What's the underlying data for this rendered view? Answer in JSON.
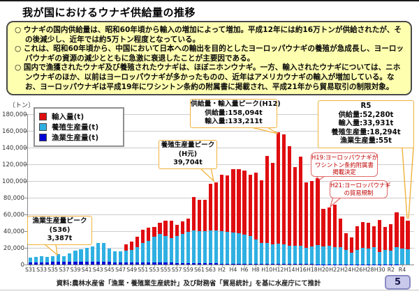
{
  "title": "我が国におけるウナギ供給量の推移",
  "summary_box": {
    "bullets": [
      "○ ウナギの国内供給量は、昭和60年頃から輸入の増加によって増加。平成12年には約16万トンが供給されたが、その後減少し、近年では約5万トン程度となっている。",
      "○ これは、昭和60年頃から、中国において日本への輸出を目的としたヨーロッパウナギの養殖が急成長し、ヨーロッパウナギの資源の減少とともに急激に衰退したことが主要因である。",
      "○ 国内で漁獲されたウナギ及び養殖されたウナギは、ほぼニホンウナギ。一方、輸入されたウナギについては、ニホンウナギのほか、以前はヨーロッパウナギが多かったものの、近年はアメリカウナギの輸入が増加している。なお、ヨーロッパウナギは平成19年にワシントン条約の附属書に掲載され、平成21年から貿易取引の制限対象。"
    ]
  },
  "chart_data": {
    "type": "bar",
    "stacked": true,
    "unit_label": "〔トン〕",
    "ylim": [
      0,
      180000
    ],
    "y_tick_step": 20000,
    "grid": true,
    "legend_position": "top-left",
    "x_tick_labels": [
      "S31",
      "S33",
      "S35",
      "S37",
      "S39",
      "S41",
      "S43",
      "S45",
      "S47",
      "S49",
      "S51",
      "S53",
      "S55",
      "S57",
      "S59",
      "S61",
      "S63",
      "H2",
      "H4",
      "H6",
      "H8",
      "H10",
      "H12",
      "H14",
      "H16",
      "H18",
      "H20",
      "H22",
      "H24",
      "H26",
      "H28",
      "H30",
      "R2",
      "R4"
    ],
    "x_tick_every": 2,
    "years": [
      "S31",
      "S32",
      "S33",
      "S34",
      "S35",
      "S36",
      "S37",
      "S38",
      "S39",
      "S40",
      "S41",
      "S42",
      "S43",
      "S44",
      "S45",
      "S46",
      "S47",
      "S48",
      "S49",
      "S50",
      "S51",
      "S52",
      "S53",
      "S54",
      "S55",
      "S56",
      "S57",
      "S58",
      "S59",
      "S60",
      "S61",
      "S62",
      "S63",
      "H1",
      "H2",
      "H3",
      "H4",
      "H5",
      "H6",
      "H7",
      "H8",
      "H9",
      "H10",
      "H11",
      "H12",
      "H13",
      "H14",
      "H15",
      "H16",
      "H17",
      "H18",
      "H19",
      "H20",
      "H21",
      "H22",
      "H23",
      "H24",
      "H25",
      "H26",
      "H27",
      "H28",
      "H29",
      "H30",
      "R1",
      "R2",
      "R3",
      "R4",
      "R5"
    ],
    "series": [
      {
        "name": "輸入量(t)",
        "color": "#e00d10",
        "values": [
          0,
          0,
          0,
          0,
          0,
          0,
          0,
          0,
          0,
          0,
          0,
          0,
          0,
          0,
          0,
          0,
          0,
          7800,
          9700,
          12500,
          15500,
          15600,
          11600,
          14000,
          18000,
          20700,
          13300,
          15000,
          15800,
          40100,
          37100,
          36800,
          55400,
          57696,
          67800,
          68000,
          75600,
          76400,
          76500,
          74000,
          79950,
          75000,
          104500,
          98020,
          133211,
          132200,
          119450,
          94700,
          107250,
          77800,
          78650,
          79600,
          45050,
          45300,
          50650,
          33870,
          19900,
          18020,
          27840,
          30360,
          30980,
          24700,
          37810,
          27620,
          31030,
          41435,
          38040,
          33931
        ]
      },
      {
        "name": "養殖生産量(t)",
        "color": "#2fb0e2",
        "values": [
          5700,
          6700,
          7000,
          6100,
          6800,
          8800,
          7100,
          10100,
          13400,
          15200,
          16700,
          18700,
          22900,
          22500,
          16100,
          13100,
          12700,
          13600,
          15000,
          17900,
          23500,
          26000,
          30800,
          34100,
          32100,
          29500,
          32300,
          34700,
          37400,
          38800,
          38500,
          38900,
          39500,
          39704,
          38800,
          37900,
          37300,
          36500,
          34800,
          32900,
          29200,
          25200,
          24700,
          23200,
          24118,
          23100,
          21900,
          21700,
          21700,
          19700,
          20900,
          23000,
          21000,
          22400,
          20500,
          20900,
          17400,
          14200,
          17600,
          20100,
          18900,
          20800,
          15100,
          17100,
          16900,
          20700,
          19200,
          18294
        ]
      },
      {
        "name": "漁業生産量(t)",
        "color": "#0000d6",
        "values": [
          2500,
          2600,
          2700,
          2800,
          3000,
          3387,
          3200,
          3100,
          3000,
          3000,
          3100,
          3100,
          3200,
          3100,
          3000,
          2900,
          2800,
          2800,
          2700,
          2600,
          2500,
          2400,
          2400,
          2300,
          2200,
          2100,
          2000,
          1900,
          1800,
          1700,
          1600,
          1500,
          1400,
          1300,
          1200,
          1100,
          1000,
          1000,
          900,
          900,
          850,
          800,
          800,
          780,
          765,
          700,
          650,
          600,
          550,
          500,
          450,
          400,
          350,
          300,
          250,
          230,
          200,
          180,
          160,
          140,
          120,
          100,
          90,
          80,
          70,
          65,
          60,
          55
        ]
      }
    ]
  },
  "annotations": {
    "supply_peak": {
      "lines": [
        "供給量・輸入量ピーク(H12)",
        "供給量:158,094t",
        "輸入量:133,211t"
      ]
    },
    "r5": {
      "lines": [
        "R5",
        "供給量:52,280t",
        "輸入量:33,931t",
        "養殖生産量:18,294t",
        "漁業生産量:55t"
      ]
    },
    "aqua_peak": {
      "lines": [
        "養殖生産量ピーク",
        "(H元)",
        "39,704t"
      ]
    },
    "fishery_peak": {
      "lines": [
        "漁業生産量ピーク",
        "(S36)",
        "3,387t"
      ]
    },
    "h19": {
      "lines": [
        "H19:ヨーロッパウナギが",
        "ワシントン条約附属書",
        "掲載決定"
      ]
    },
    "h21": {
      "lines": [
        "H21:ヨーロッパウナギ",
        "の貿易規制"
      ]
    }
  },
  "source": "資料:農林水産省「漁業・養殖業生産統計」及び財務省「貿易統計」を基に水産庁にて推計",
  "page_number": "5",
  "colors": {
    "import_red": "#e00d10",
    "aquaculture_cyan": "#2fb0e2",
    "fishery_blue": "#0000d6",
    "summary_bg": "#ffffb0",
    "callout_yellow_border": "#f0b23c",
    "callout_red_border": "#e06a6a",
    "page_badge_bg": "#c9c9ec"
  }
}
